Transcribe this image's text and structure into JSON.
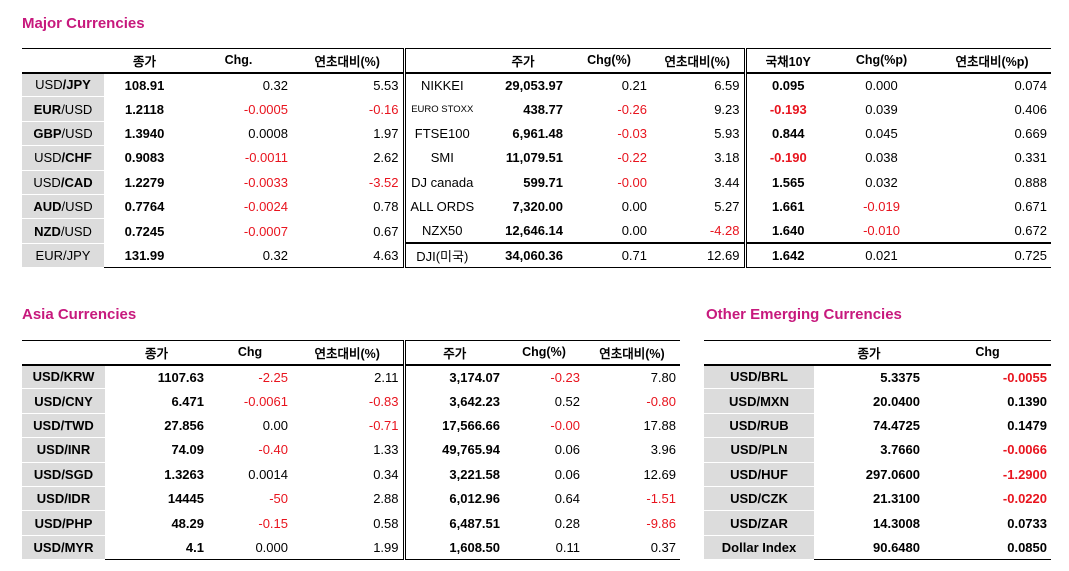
{
  "major": {
    "title": "Major Currencies",
    "headers": [
      "",
      "종가",
      "Chg.",
      "연초대비(%)",
      "",
      "주가",
      "Chg(%)",
      "연초대비(%)",
      "국채10Y",
      "Chg(%p)",
      "연초대비(%p)"
    ],
    "rows": [
      {
        "pair_a": "USD",
        "pair_b": "/JPY",
        "bold_part": "b",
        "close": "108.91",
        "chg": "0.32",
        "ytd": "5.53",
        "idx": "NIKKEI",
        "idx_close": "29,053.97",
        "idx_chg": "0.21",
        "idx_ytd": "6.59",
        "bond": "0.095",
        "bond_chg": "0.000",
        "bond_ytd": "0.074"
      },
      {
        "pair_a": "EUR",
        "pair_b": "/USD",
        "bold_part": "a",
        "close": "1.2118",
        "chg": "-0.0005",
        "ytd": "-0.16",
        "idx": "EURO STOXX",
        "idx_close": "438.77",
        "idx_chg": "-0.26",
        "idx_ytd": "9.23",
        "bond": "-0.193",
        "bond_chg": "0.039",
        "bond_ytd": "0.406"
      },
      {
        "pair_a": "GBP",
        "pair_b": "/USD",
        "bold_part": "a",
        "close": "1.3940",
        "chg": "0.0008",
        "ytd": "1.97",
        "idx": "FTSE100",
        "idx_close": "6,961.48",
        "idx_chg": "-0.03",
        "idx_ytd": "5.93",
        "bond": "0.844",
        "bond_chg": "0.045",
        "bond_ytd": "0.669"
      },
      {
        "pair_a": "USD",
        "pair_b": "/CHF",
        "bold_part": "b",
        "close": "0.9083",
        "chg": "-0.0011",
        "ytd": "2.62",
        "idx": "SMI",
        "idx_close": "11,079.51",
        "idx_chg": "-0.22",
        "idx_ytd": "3.18",
        "bond": "-0.190",
        "bond_chg": "0.038",
        "bond_ytd": "0.331"
      },
      {
        "pair_a": "USD",
        "pair_b": "/CAD",
        "bold_part": "b",
        "close": "1.2279",
        "chg": "-0.0033",
        "ytd": "-3.52",
        "idx": "DJ canada",
        "idx_close": "599.71",
        "idx_chg": "-0.00",
        "idx_ytd": "3.44",
        "bond": "1.565",
        "bond_chg": "0.032",
        "bond_ytd": "0.888"
      },
      {
        "pair_a": "AUD",
        "pair_b": "/USD",
        "bold_part": "a",
        "close": "0.7764",
        "chg": "-0.0024",
        "ytd": "0.78",
        "idx": "ALL ORDS",
        "idx_close": "7,320.00",
        "idx_chg": "0.00",
        "idx_ytd": "5.27",
        "bond": "1.661",
        "bond_chg": "-0.019",
        "bond_ytd": "0.671"
      },
      {
        "pair_a": "NZD",
        "pair_b": "/USD",
        "bold_part": "a",
        "close": "0.7245",
        "chg": "-0.0007",
        "ytd": "0.67",
        "idx": "NZX50",
        "idx_close": "12,646.14",
        "idx_chg": "0.00",
        "idx_ytd": "-4.28",
        "bond": "1.640",
        "bond_chg": "-0.010",
        "bond_ytd": "0.672"
      },
      {
        "pair_a": "EUR/JPY",
        "pair_b": "",
        "bold_part": "none",
        "close": "131.99",
        "chg": "0.32",
        "ytd": "4.63",
        "idx": "DJI(미국)",
        "idx_close": "34,060.36",
        "idx_chg": "0.71",
        "idx_ytd": "12.69",
        "bond": "1.642",
        "bond_chg": "0.021",
        "bond_ytd": "0.725"
      }
    ]
  },
  "asia": {
    "title": "Asia Currencies",
    "headers": [
      "",
      "종가",
      "Chg",
      "연초대비(%)",
      "주가",
      "Chg(%)",
      "연초대비(%)"
    ],
    "rows": [
      {
        "pair": "USD/KRW",
        "close": "1107.63",
        "chg": "-2.25",
        "ytd": "2.11",
        "idx_close": "3,174.07",
        "idx_chg": "-0.23",
        "idx_ytd": "7.80"
      },
      {
        "pair": "USD/CNY",
        "close": "6.471",
        "chg": "-0.0061",
        "ytd": "-0.83",
        "idx_close": "3,642.23",
        "idx_chg": "0.52",
        "idx_ytd": "-0.80"
      },
      {
        "pair": "USD/TWD",
        "close": "27.856",
        "chg": "0.00",
        "ytd": "-0.71",
        "idx_close": "17,566.66",
        "idx_chg": "-0.00",
        "idx_ytd": "17.88"
      },
      {
        "pair": "USD/INR",
        "close": "74.09",
        "chg": "-0.40",
        "ytd": "1.33",
        "idx_close": "49,765.94",
        "idx_chg": "0.06",
        "idx_ytd": "3.96"
      },
      {
        "pair": "USD/SGD",
        "close": "1.3263",
        "chg": "0.0014",
        "ytd": "0.34",
        "idx_close": "3,221.58",
        "idx_chg": "0.06",
        "idx_ytd": "12.69"
      },
      {
        "pair": "USD/IDR",
        "close": "14445",
        "chg": "-50",
        "ytd": "2.88",
        "idx_close": "6,012.96",
        "idx_chg": "0.64",
        "idx_ytd": "-1.51"
      },
      {
        "pair": "USD/PHP",
        "close": "48.29",
        "chg": "-0.15",
        "ytd": "0.58",
        "idx_close": "6,487.51",
        "idx_chg": "0.28",
        "idx_ytd": "-9.86"
      },
      {
        "pair": "USD/MYR",
        "close": "4.1",
        "chg": "0.000",
        "ytd": "1.99",
        "idx_close": "1,608.50",
        "idx_chg": "0.11",
        "idx_ytd": "0.37"
      }
    ]
  },
  "emerging": {
    "title": "Other Emerging Currencies",
    "headers": [
      "",
      "종가",
      "Chg"
    ],
    "rows": [
      {
        "pair": "USD/BRL",
        "close": "5.3375",
        "chg": "-0.0055"
      },
      {
        "pair": "USD/MXN",
        "close": "20.0400",
        "chg": "0.1390"
      },
      {
        "pair": "USD/RUB",
        "close": "74.4725",
        "chg": "0.1479"
      },
      {
        "pair": "USD/PLN",
        "close": "3.7660",
        "chg": "-0.0066"
      },
      {
        "pair": "USD/HUF",
        "close": "297.0600",
        "chg": "-1.2900"
      },
      {
        "pair": "USD/CZK",
        "close": "21.3100",
        "chg": "-0.0220"
      },
      {
        "pair": "USD/ZAR",
        "close": "14.3008",
        "chg": "0.0733"
      },
      {
        "pair": "Dollar Index",
        "close": "90.6480",
        "chg": "0.0850"
      }
    ]
  },
  "colors": {
    "title": "#c7197d",
    "negative": "#e8141e",
    "label_bg": "#dcdcdc"
  }
}
